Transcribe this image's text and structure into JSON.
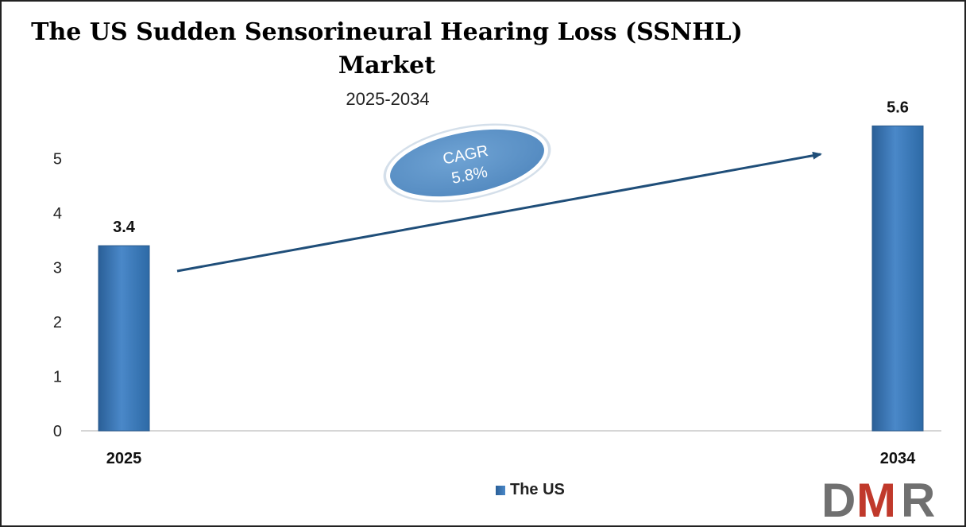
{
  "chart_data": {
    "type": "bar",
    "title": "The US Sudden Sensorineural Hearing Loss (SSNHL) Market",
    "subtitle": "2025-2034",
    "categories": [
      "2025",
      "2034"
    ],
    "series": [
      {
        "name": "The US",
        "values": [
          3.4,
          5.6
        ]
      }
    ],
    "data_labels": [
      "3.4",
      "5.6"
    ],
    "yticks": [
      "0",
      "1",
      "2",
      "3",
      "4",
      "5"
    ],
    "ylim": [
      0,
      6
    ],
    "xlabel": "",
    "ylabel": "",
    "grid": false,
    "legend_position": "bottom",
    "annotation": {
      "label": "CAGR",
      "value": "5.8%"
    },
    "colors": {
      "bar": "#3a78b8",
      "arrow": "#1f4e79",
      "ellipse": "#5b92c6"
    }
  },
  "logo": {
    "text": "DMR",
    "colors": {
      "d": "#707070",
      "m": "#c0392b",
      "r": "#707070"
    }
  }
}
